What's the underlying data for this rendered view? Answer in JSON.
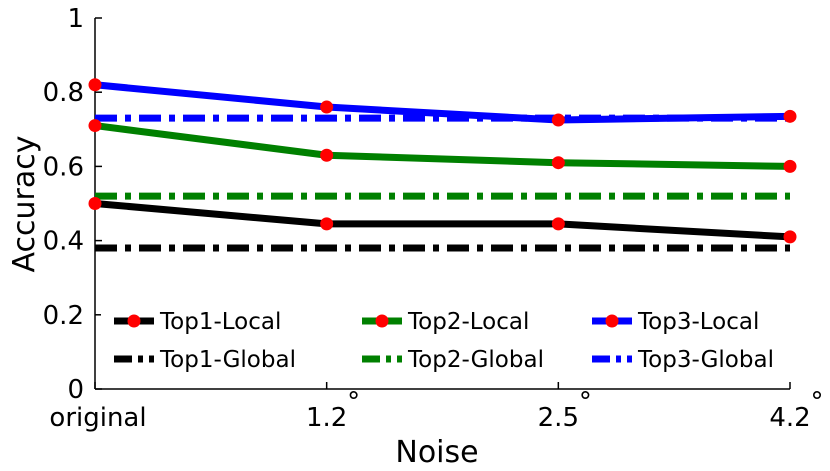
{
  "chart_data": {
    "type": "line",
    "title": "",
    "xlabel": "Noise",
    "ylabel": "Accuracy",
    "categories": [
      "original",
      "1.2",
      "2.5",
      "4.2"
    ],
    "category_suffix": "°",
    "ylim": [
      0,
      1
    ],
    "yticks": [
      "0",
      "0.2",
      "0.4",
      "0.6",
      "0.8",
      "1"
    ],
    "grid": false,
    "legend_position": "bottom",
    "series": [
      {
        "name": "Top1-Local",
        "values": [
          0.5,
          0.445,
          0.445,
          0.41
        ],
        "color": "#000000",
        "style": "solid",
        "marker": "circle"
      },
      {
        "name": "Top2-Local",
        "values": [
          0.71,
          0.63,
          0.61,
          0.6
        ],
        "color": "#008000",
        "style": "solid",
        "marker": "circle"
      },
      {
        "name": "Top3-Local",
        "values": [
          0.82,
          0.76,
          0.725,
          0.735
        ],
        "color": "#0000ff",
        "style": "solid",
        "marker": "circle"
      },
      {
        "name": "Top1-Global",
        "values": [
          0.38,
          0.38,
          0.38,
          0.38
        ],
        "color": "#000000",
        "style": "dashdot",
        "marker": "none"
      },
      {
        "name": "Top2-Global",
        "values": [
          0.52,
          0.52,
          0.52,
          0.52
        ],
        "color": "#008000",
        "style": "dashdot",
        "marker": "none"
      },
      {
        "name": "Top3-Global",
        "values": [
          0.73,
          0.73,
          0.73,
          0.73
        ],
        "color": "#0000ff",
        "style": "dashdot",
        "marker": "none"
      }
    ],
    "marker_color": "#ff0000"
  }
}
